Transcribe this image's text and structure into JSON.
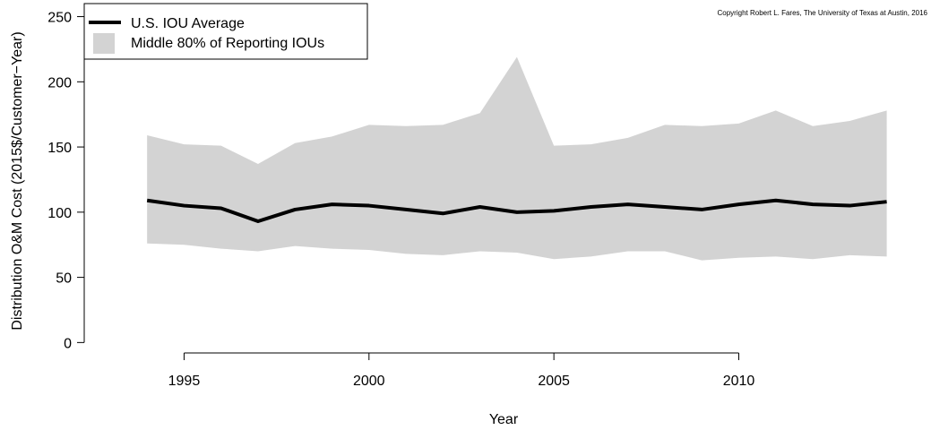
{
  "chart_data": {
    "type": "line",
    "title": "",
    "xlabel": "Year",
    "ylabel": "Distribution O&M Cost (2015$/Customer−Year)",
    "copyright": "Copyright Robert L. Fares, The University of Texas at Austin, 2016",
    "xlim": [
      1992.3,
      2015.1
    ],
    "ylim": [
      -8,
      260
    ],
    "x_ticks": [
      1995,
      2000,
      2005,
      2010
    ],
    "x_tick_labels": [
      "1995",
      "2000",
      "2005",
      "2010"
    ],
    "y_ticks": [
      0,
      50,
      100,
      150,
      200,
      250
    ],
    "y_tick_labels": [
      "0",
      "50",
      "100",
      "150",
      "200",
      "250"
    ],
    "x": [
      1994,
      1995,
      1996,
      1997,
      1998,
      1999,
      2000,
      2001,
      2002,
      2003,
      2004,
      2005,
      2006,
      2007,
      2008,
      2009,
      2010,
      2011,
      2012,
      2013,
      2014
    ],
    "series": [
      {
        "name": "U.S. IOU Average",
        "kind": "line",
        "color": "#000000",
        "values": [
          109,
          105,
          103,
          93,
          102,
          106,
          105,
          102,
          99,
          104,
          100,
          101,
          104,
          106,
          104,
          102,
          106,
          109,
          106,
          105,
          108
        ]
      },
      {
        "name": "Middle 80% of Reporting IOUs",
        "kind": "band",
        "color": "#d3d3d3",
        "upper": [
          159,
          152,
          151,
          137,
          153,
          158,
          167,
          166,
          167,
          176,
          219,
          151,
          152,
          157,
          167,
          166,
          168,
          178,
          166,
          170,
          178
        ],
        "lower": [
          76,
          75,
          72,
          70,
          74,
          72,
          71,
          68,
          67,
          70,
          69,
          64,
          66,
          70,
          70,
          63,
          65,
          66,
          64,
          67,
          66
        ]
      }
    ],
    "legend": {
      "placement": "top-left",
      "entries": [
        "U.S. IOU Average",
        "Middle 80% of Reporting IOUs"
      ]
    },
    "grid": false
  }
}
